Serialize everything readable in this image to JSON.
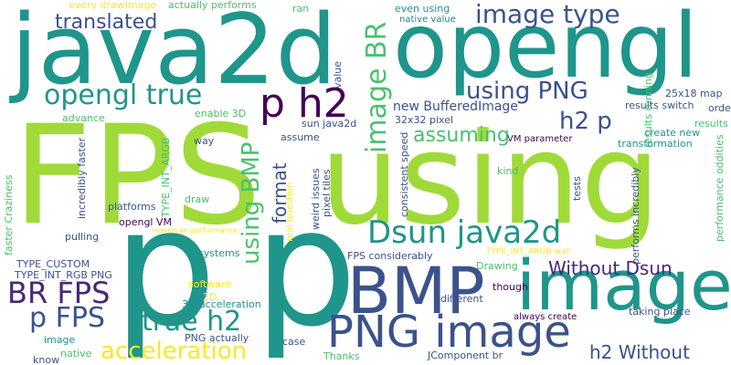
{
  "colors": {
    "lime": "#a0da39",
    "teal": "#1f958b",
    "navy": "#3b528b",
    "purple": "#440154",
    "green": "#4ac16d",
    "yellow": "#fde725",
    "violet": "#482878",
    "cyan": "#26828e"
  },
  "words": [
    {
      "text": "FPS",
      "color": "lime"
    },
    {
      "text": "using",
      "color": "lime"
    },
    {
      "text": "java2d",
      "color": "teal"
    },
    {
      "text": "opengl",
      "color": "teal"
    },
    {
      "text": "p",
      "color": "teal"
    },
    {
      "text": "p",
      "color": "teal"
    },
    {
      "text": "image",
      "color": "teal"
    },
    {
      "text": "BMP",
      "color": "navy"
    },
    {
      "text": "PNG image",
      "color": "navy"
    },
    {
      "text": "image type",
      "color": "navy"
    },
    {
      "text": "opengl true",
      "color": "teal"
    },
    {
      "text": "p h2",
      "color": "purple"
    },
    {
      "text": "Dsun java2d",
      "color": "teal"
    },
    {
      "text": "BR FPS",
      "color": "violet"
    },
    {
      "text": "p FPS",
      "color": "navy"
    },
    {
      "text": "true h2",
      "color": "teal"
    },
    {
      "text": "acceleration",
      "color": "yellow"
    },
    {
      "text": "using PNG",
      "color": "navy"
    },
    {
      "text": "h2 p",
      "color": "navy"
    },
    {
      "text": "image BR",
      "color": "green"
    },
    {
      "text": "using BMP",
      "color": "green"
    },
    {
      "text": "translated",
      "color": "navy"
    },
    {
      "text": "assuming",
      "color": "green"
    },
    {
      "text": "format",
      "color": "navy"
    },
    {
      "text": "Without Dsun",
      "color": "violet"
    },
    {
      "text": "h2 Without",
      "color": "navy"
    },
    {
      "text": "new BufferedImage",
      "color": "navy"
    },
    {
      "text": "every drawImage",
      "color": "yellow"
    },
    {
      "text": "actually performs",
      "color": "green"
    },
    {
      "text": "ran",
      "color": "green"
    },
    {
      "text": "even using",
      "color": "teal"
    },
    {
      "text": "native value",
      "color": "cyan"
    },
    {
      "text": "results running",
      "color": "green"
    },
    {
      "text": "25x18 map",
      "color": "navy"
    },
    {
      "text": "results switch",
      "color": "navy"
    },
    {
      "text": "order",
      "color": "navy"
    },
    {
      "text": "results",
      "color": "green"
    },
    {
      "text": "create new",
      "color": "teal"
    },
    {
      "text": "transformation",
      "color": "teal"
    },
    {
      "text": "VM parameter",
      "color": "purple"
    },
    {
      "text": "32x32 pixel",
      "color": "navy"
    },
    {
      "text": "sun java2d",
      "color": "navy"
    },
    {
      "text": "assume",
      "color": "navy"
    },
    {
      "text": "enable 3D",
      "color": "green"
    },
    {
      "text": "advance",
      "color": "green"
    },
    {
      "text": "way",
      "color": "navy"
    },
    {
      "text": "TYPE_INT_ARGB",
      "color": "green"
    },
    {
      "text": "value",
      "color": "navy"
    },
    {
      "text": "weird issues",
      "color": "navy"
    },
    {
      "text": "pixel tiles",
      "color": "navy"
    },
    {
      "text": "real question",
      "color": "yellow"
    },
    {
      "text": "consistent speed",
      "color": "navy"
    },
    {
      "text": "kind",
      "color": "green"
    },
    {
      "text": "tests",
      "color": "navy"
    },
    {
      "text": "performs incredibly",
      "color": "navy"
    },
    {
      "text": "performance oddities",
      "color": "green"
    },
    {
      "text": "faster Craziness",
      "color": "green"
    },
    {
      "text": "incredibly faster",
      "color": "navy"
    },
    {
      "text": "draw",
      "color": "green"
    },
    {
      "text": "platforms",
      "color": "navy"
    },
    {
      "text": "opengl VM",
      "color": "purple"
    },
    {
      "text": "maximum performance",
      "color": "yellow"
    },
    {
      "text": "pulling",
      "color": "navy"
    },
    {
      "text": "TYPE_CUSTOM",
      "color": "navy"
    },
    {
      "text": "TYPE_INT_RGB PNG",
      "color": "navy"
    },
    {
      "text": "systems",
      "color": "teal"
    },
    {
      "text": "FPS considerably",
      "color": "navy"
    },
    {
      "text": "TYPE_INT_ARGB wall",
      "color": "yellow"
    },
    {
      "text": "Drawing",
      "color": "green"
    },
    {
      "text": "software",
      "color": "yellow"
    },
    {
      "text": "though",
      "color": "purple"
    },
    {
      "text": "2D",
      "color": "yellow"
    },
    {
      "text": "3D acceleration",
      "color": "teal"
    },
    {
      "text": "different",
      "color": "navy"
    },
    {
      "text": "always create",
      "color": "purple"
    },
    {
      "text": "taking place",
      "color": "navy"
    },
    {
      "text": "image",
      "color": "teal"
    },
    {
      "text": "native",
      "color": "green"
    },
    {
      "text": "PNG actually",
      "color": "navy"
    },
    {
      "text": "case",
      "color": "navy"
    },
    {
      "text": "know",
      "color": "navy"
    },
    {
      "text": "Thanks",
      "color": "green"
    },
    {
      "text": "JComponent br",
      "color": "navy"
    }
  ]
}
